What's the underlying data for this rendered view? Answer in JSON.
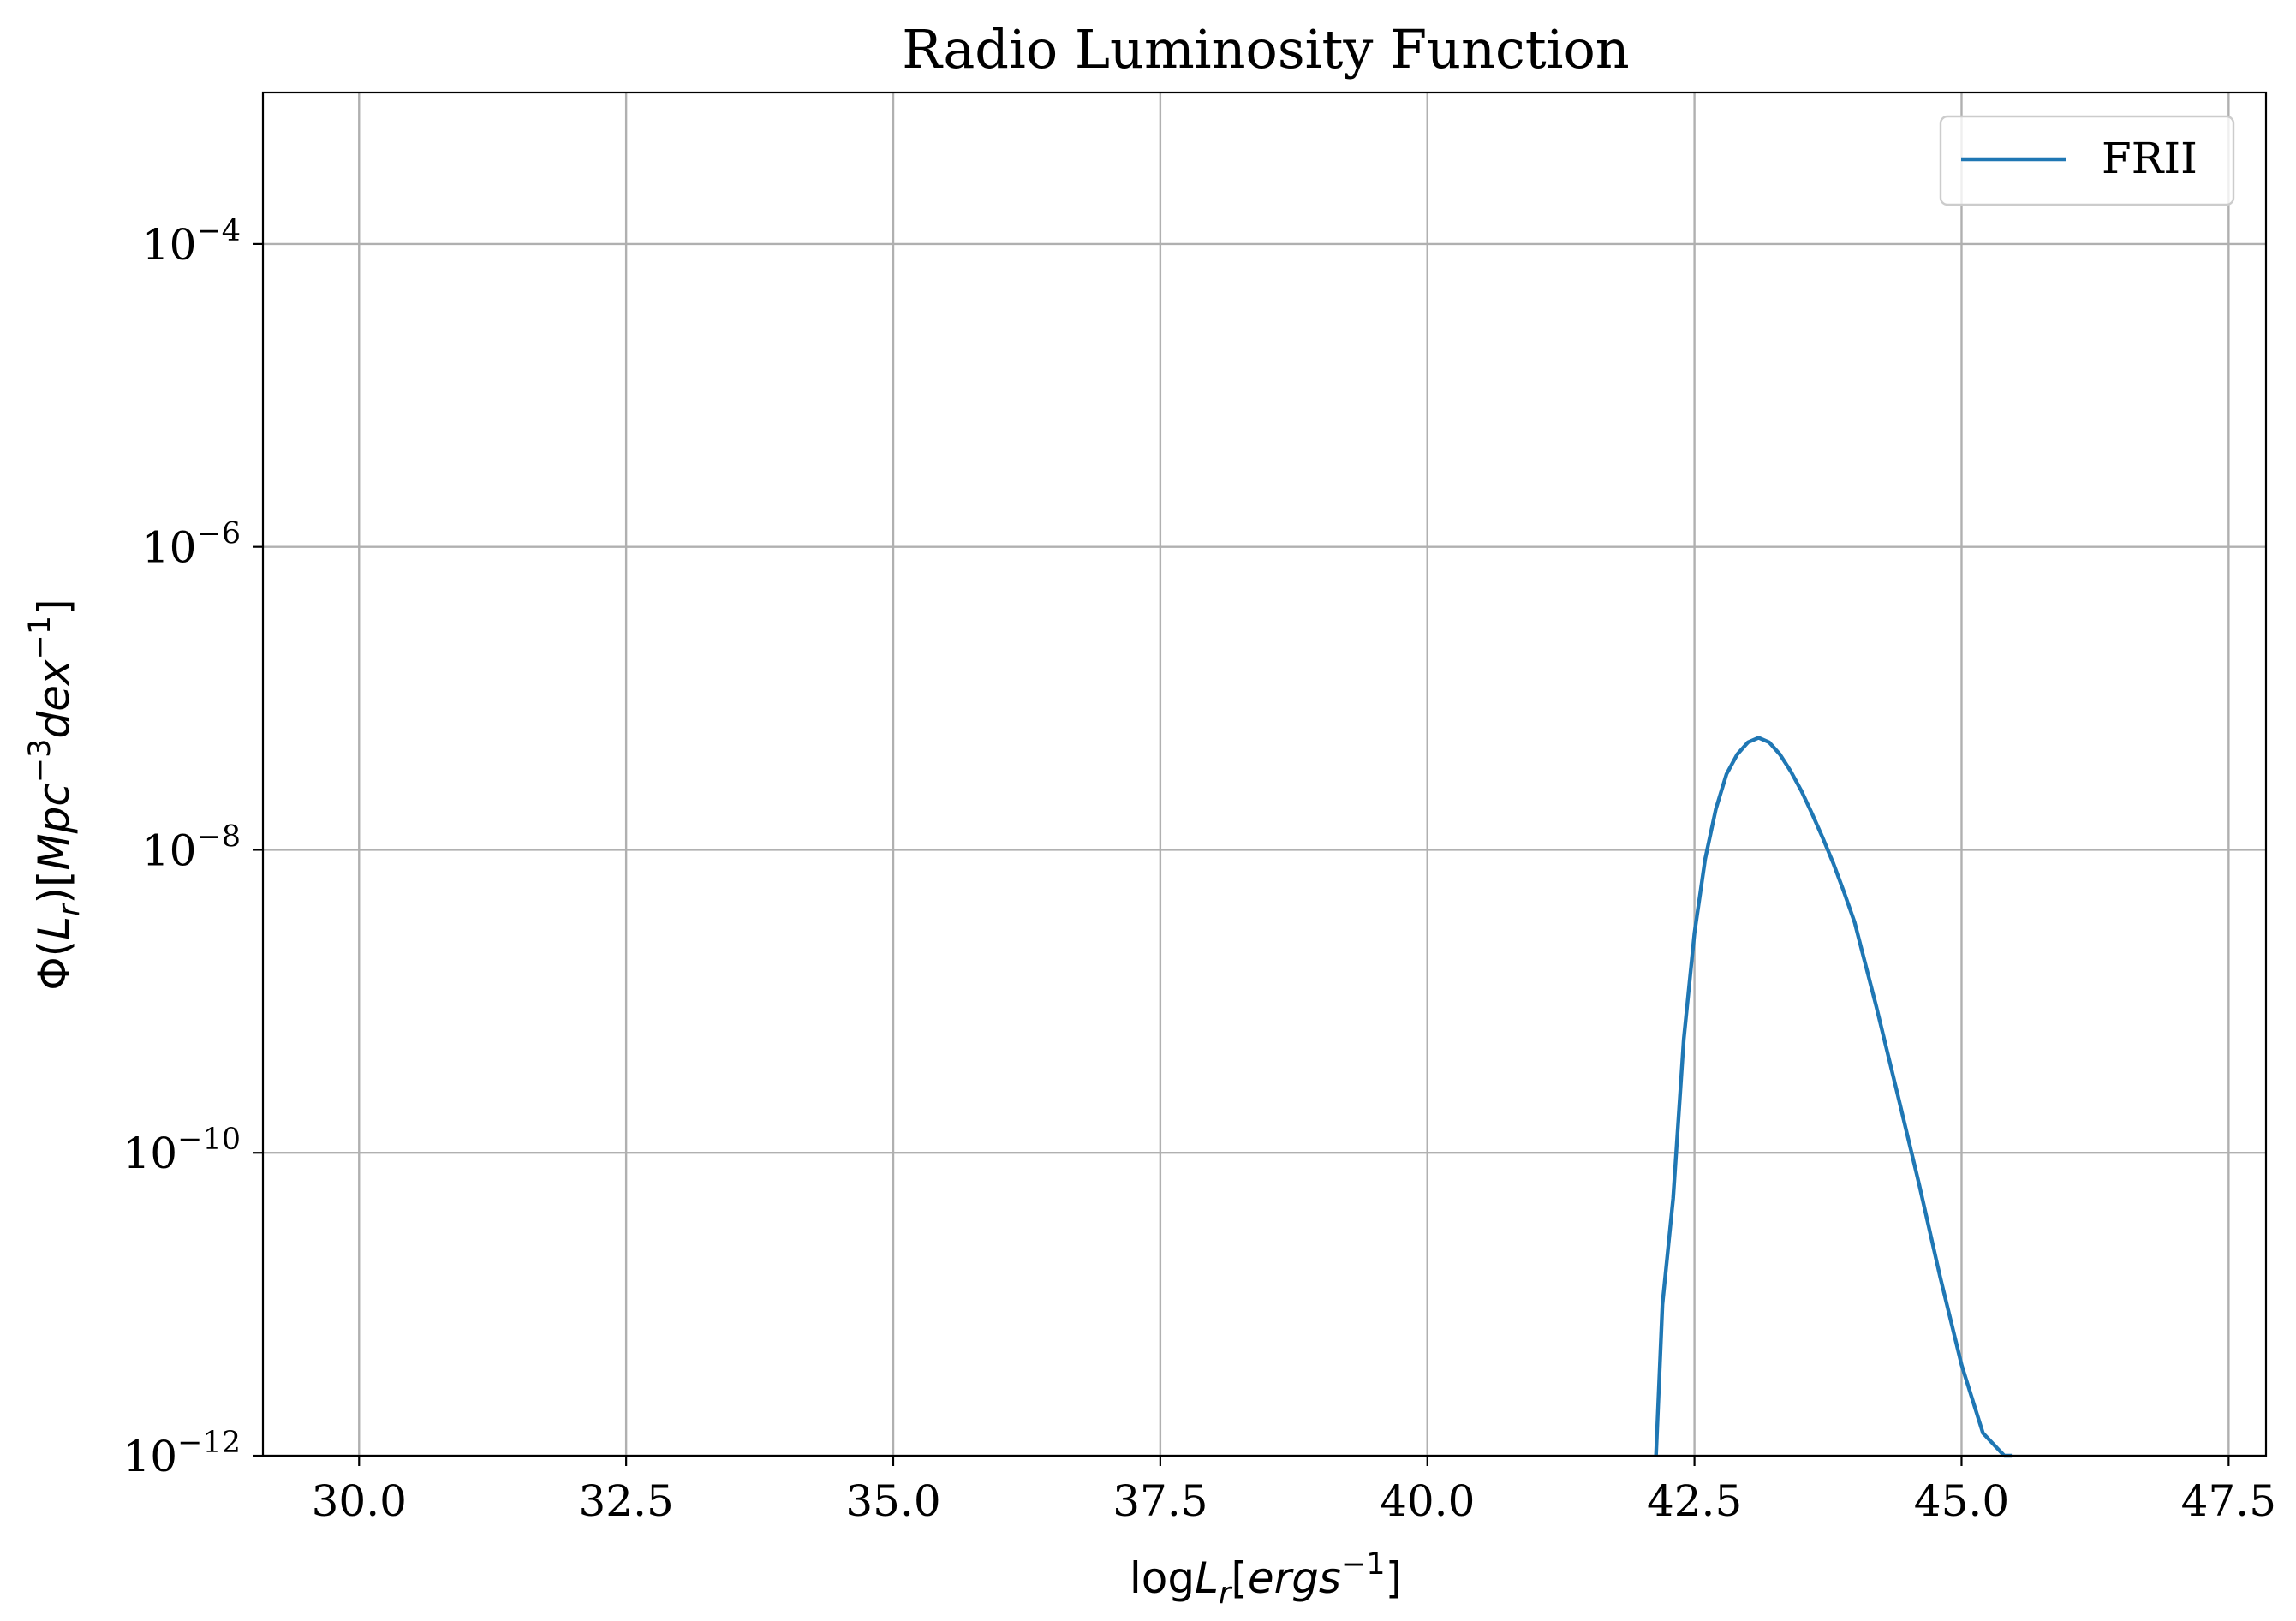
{
  "chart_data": {
    "type": "line",
    "title": "Radio Luminosity Function",
    "xlabel": {
      "prefix": "log",
      "symbol": "L",
      "subscript": "r",
      "bracket_open": "[",
      "unit": "ergs",
      "unit_exponent": "−1",
      "bracket_close": "]"
    },
    "ylabel": {
      "symbol": "Φ",
      "open": "(",
      "arg": "L",
      "arg_subscript": "r",
      "close": ")",
      "bracket_open": "[",
      "unit1": "Mpc",
      "unit1_exponent": "−3",
      "unit2": "dex",
      "unit2_exponent": "−1",
      "bracket_close": "]"
    },
    "xlim": [
      29.1,
      47.85
    ],
    "ylim_log10": [
      -12,
      -3
    ],
    "yscale": "log",
    "x_ticks": [
      {
        "value": 30.0,
        "label": "30.0"
      },
      {
        "value": 32.5,
        "label": "32.5"
      },
      {
        "value": 35.0,
        "label": "35.0"
      },
      {
        "value": 37.5,
        "label": "37.5"
      },
      {
        "value": 40.0,
        "label": "40.0"
      },
      {
        "value": 42.5,
        "label": "42.5"
      },
      {
        "value": 45.0,
        "label": "45.0"
      },
      {
        "value": 47.5,
        "label": "47.5"
      }
    ],
    "y_ticks": [
      {
        "exp": -4,
        "base": "10",
        "exponent": "−4"
      },
      {
        "exp": -6,
        "base": "10",
        "exponent": "−6"
      },
      {
        "exp": -8,
        "base": "10",
        "exponent": "−8"
      },
      {
        "exp": -10,
        "base": "10",
        "exponent": "−10"
      },
      {
        "exp": -12,
        "base": "10",
        "exponent": "−12"
      }
    ],
    "grid": true,
    "legend_position": "top-right",
    "series": [
      {
        "name": "FRII",
        "color": "#1f77b4",
        "x": [
          42.14,
          42.2,
          42.3,
          42.4,
          42.5,
          42.6,
          42.7,
          42.8,
          42.9,
          43.0,
          43.1,
          43.2,
          43.3,
          43.4,
          43.5,
          43.6,
          43.7,
          43.8,
          43.9,
          44.0,
          44.2,
          44.4,
          44.6,
          44.8,
          45.0,
          45.2,
          45.4,
          45.47
        ],
        "log10_y": [
          -12.0,
          -11.0,
          -10.3,
          -9.25,
          -8.55,
          -8.06,
          -7.73,
          -7.5,
          -7.37,
          -7.29,
          -7.26,
          -7.29,
          -7.37,
          -7.48,
          -7.61,
          -7.76,
          -7.92,
          -8.09,
          -8.28,
          -8.48,
          -9.03,
          -9.61,
          -10.2,
          -10.82,
          -11.4,
          -11.85,
          -12.0,
          -12.0
        ]
      }
    ]
  }
}
